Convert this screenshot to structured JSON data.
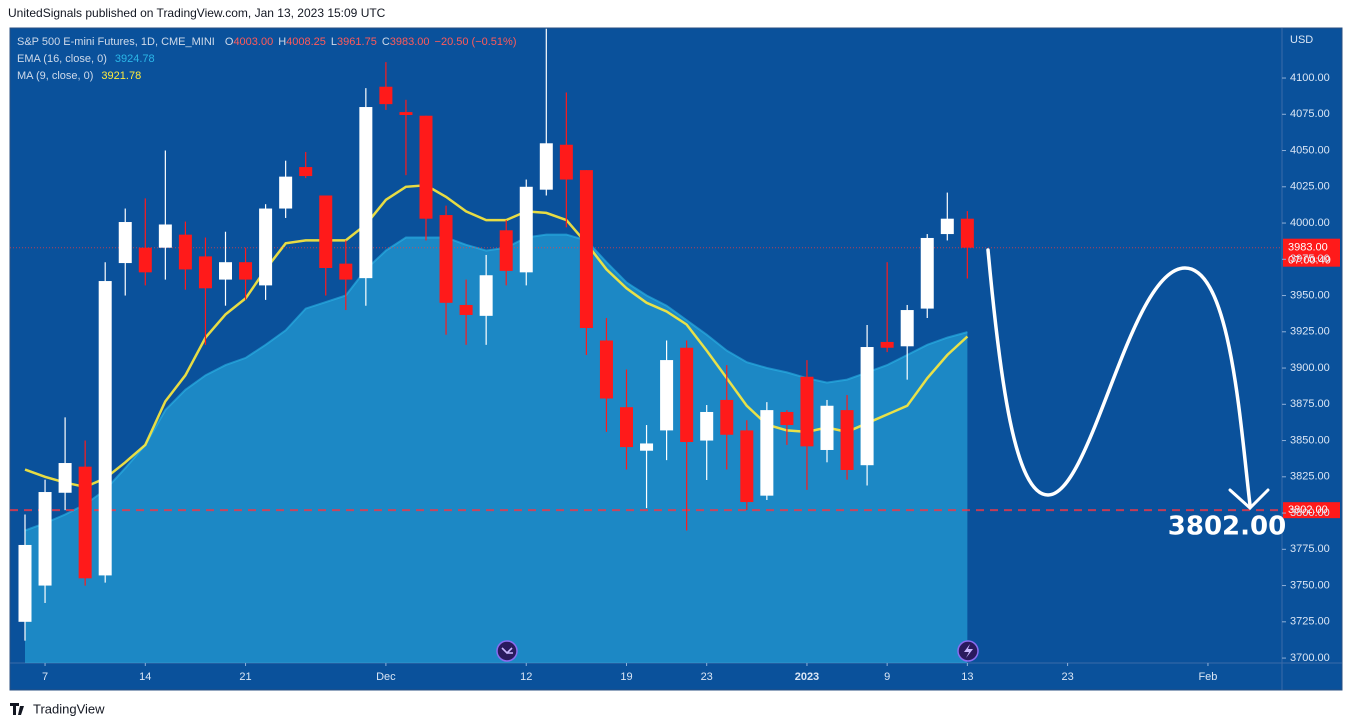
{
  "published": "UnitedSignals published on TradingView.com, Jan 13, 2023 15:09 UTC",
  "footer": "TradingView",
  "chart_data": {
    "type": "candlestick",
    "title": "S&P 500 E-mini Futures, 1D, CME_MINI",
    "ohlc_keys": [
      "O",
      "H",
      "L",
      "C"
    ],
    "ohlc_values": [
      "4003.00",
      "4008.25",
      "3961.75",
      "3983.00"
    ],
    "change": "−20.50 (−0.51%)",
    "currency": "USD",
    "up_color": "#ffffff",
    "down_color": "#ff1a1a",
    "open": [
      3725,
      3750,
      3814,
      3832,
      3757,
      3972.4,
      3983,
      3983,
      3992,
      3977,
      3961,
      3973,
      3957,
      4010,
      4038.6,
      4019,
      3972,
      3962,
      4094,
      4076.5,
      4074,
      4005.5,
      3943.5,
      3936,
      3995,
      3966,
      4023,
      4054,
      4036.5,
      3919,
      3873,
      3843,
      3857,
      3914,
      3850,
      3878,
      3857,
      3812,
      3869.7,
      3894,
      3843.5,
      3871,
      3833,
      3918,
      3915,
      3941,
      3992.4,
      4003
    ],
    "high": [
      3799,
      3823,
      3866,
      3850,
      3973,
      4010,
      4017,
      4050,
      4001,
      3990,
      3994,
      3983,
      4013,
      4043,
      4049,
      4019,
      3988,
      4093,
      4111,
      4085,
      4074,
      4012,
      3961,
      3978,
      4002,
      4030,
      4134,
      4090,
      4036.5,
      3934.5,
      3899,
      3860.7,
      3919,
      3919,
      3874.5,
      3902,
      3864,
      3876.5,
      3871,
      3905.5,
      3878,
      3881.4,
      3929.7,
      3973,
      3943.5,
      3992.4,
      4021,
      4008.25
    ],
    "low": [
      3712,
      3738,
      3802,
      3750,
      3752,
      3950,
      3957,
      3961,
      3954,
      3916,
      3943,
      3947,
      3947,
      4003.5,
      4031,
      3950,
      3940,
      3943,
      4078,
      4033,
      3988,
      3923,
      3916,
      3916,
      3957,
      3957,
      4019,
      3997,
      3909,
      3856,
      3830,
      3803.4,
      3836.5,
      3788,
      3822.8,
      3830,
      3802,
      3809,
      3847,
      3816,
      3835,
      3823,
      3819,
      3911,
      3892,
      3934.5,
      3988,
      3961.75
    ],
    "close": [
      3778,
      3814.5,
      3834.5,
      3755,
      3960,
      4000.7,
      3966,
      3999,
      3968,
      3955,
      3973,
      3961,
      4010,
      4032,
      4032.4,
      3969,
      3961,
      4080,
      4082,
      4074.5,
      4003,
      3945,
      3936.6,
      3964,
      3967,
      4025,
      4055,
      4030,
      3927.6,
      3879,
      3845.5,
      3848,
      3905.5,
      3849,
      3869.7,
      3854,
      3807.6,
      3871,
      3860.7,
      3846,
      3874,
      3829.7,
      3914.5,
      3914,
      3940,
      3989.7,
      4003,
      3983
    ],
    "series": [
      {
        "name": "EMA (16, close, 0)",
        "color": "#2bb6e8",
        "style": "area",
        "value_label": "3924.78",
        "values": [
          3788,
          3793,
          3799,
          3806,
          3816,
          3831,
          3847,
          3871,
          3885,
          3895,
          3902,
          3907,
          3916,
          3926,
          3941,
          3945.5,
          3950,
          3968,
          3981,
          3990,
          3990,
          3990,
          3985,
          3981,
          3983,
          3990,
          3992,
          3992,
          3988,
          3973,
          3959,
          3950,
          3943,
          3933,
          3923,
          3912,
          3904,
          3900,
          3897,
          3893,
          3890,
          3892,
          3897,
          3902,
          3909,
          3916,
          3921,
          3924.78
        ]
      },
      {
        "name": "MA (9, close, 0)",
        "color": "#ffeb3b",
        "style": "line",
        "value_label": "3921.78",
        "values": [
          3830,
          3825,
          3821,
          3818,
          3824,
          3835,
          3847,
          3877,
          3895,
          3921,
          3937,
          3948,
          3968,
          3986,
          3988,
          3988,
          3988,
          3999,
          4016,
          4025,
          4026,
          4018,
          4008,
          4002,
          4002,
          4008,
          4007,
          4002,
          3986,
          3968,
          3955,
          3945,
          3939,
          3930,
          3912,
          3893,
          3874,
          3861,
          3857,
          3856,
          3859,
          3856,
          3862,
          3868,
          3874,
          3893,
          3909,
          3921.78
        ]
      }
    ],
    "last_price_label": "3983.00",
    "countdown": "07:00:49",
    "level": {
      "value": 3802,
      "label": "3802.00"
    },
    "annotation": "3802.00",
    "ylim": [
      3696.6,
      4134.5
    ],
    "yticks": [
      {
        "value": 4100,
        "label": "4100.00"
      },
      {
        "value": 4075,
        "label": "4075.00"
      },
      {
        "value": 4050,
        "label": "4050.00"
      },
      {
        "value": 4025,
        "label": "4025.00"
      },
      {
        "value": 4000,
        "label": "4000.00"
      },
      {
        "value": 3975,
        "label": "3975.00"
      },
      {
        "value": 3950,
        "label": "3950.00"
      },
      {
        "value": 3925,
        "label": "3925.00"
      },
      {
        "value": 3900,
        "label": "3900.00"
      },
      {
        "value": 3875,
        "label": "3875.00"
      },
      {
        "value": 3850,
        "label": "3850.00"
      },
      {
        "value": 3825,
        "label": "3825.00"
      },
      {
        "value": 3800,
        "label": "3800.00"
      },
      {
        "value": 3775,
        "label": "3775.00"
      },
      {
        "value": 3750,
        "label": "3750.00"
      },
      {
        "value": 3725,
        "label": "3725.00"
      },
      {
        "value": 3700,
        "label": "3700.00"
      }
    ],
    "xticks": [
      {
        "value": 1,
        "label": "7"
      },
      {
        "value": 6,
        "label": "14"
      },
      {
        "value": 11,
        "label": "21"
      },
      {
        "value": 18,
        "label": "Dec"
      },
      {
        "value": 25,
        "label": "12"
      },
      {
        "value": 30,
        "label": "19"
      },
      {
        "value": 34,
        "label": "23"
      },
      {
        "value": 39,
        "label": "2023"
      },
      {
        "value": 43,
        "label": "9"
      },
      {
        "value": 47,
        "label": "13"
      },
      {
        "value": 52,
        "label": "23"
      },
      {
        "value": 59,
        "label": "Feb"
      }
    ]
  }
}
